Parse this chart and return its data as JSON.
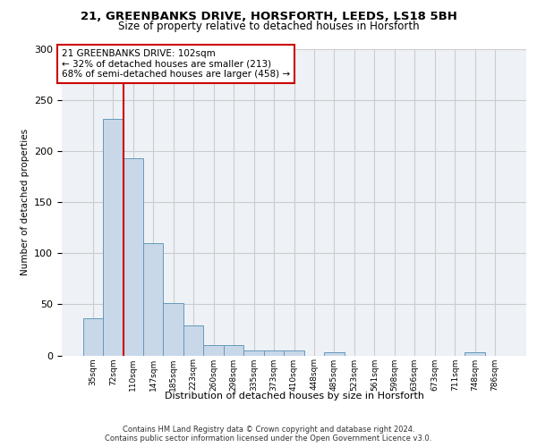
{
  "title_line1": "21, GREENBANKS DRIVE, HORSFORTH, LEEDS, LS18 5BH",
  "title_line2": "Size of property relative to detached houses in Horsforth",
  "xlabel": "Distribution of detached houses by size in Horsforth",
  "ylabel": "Number of detached properties",
  "bar_labels": [
    "35sqm",
    "72sqm",
    "110sqm",
    "147sqm",
    "185sqm",
    "223sqm",
    "260sqm",
    "298sqm",
    "335sqm",
    "373sqm",
    "410sqm",
    "448sqm",
    "485sqm",
    "523sqm",
    "561sqm",
    "598sqm",
    "636sqm",
    "673sqm",
    "711sqm",
    "748sqm",
    "786sqm"
  ],
  "bar_values": [
    36,
    232,
    193,
    110,
    51,
    29,
    10,
    10,
    5,
    5,
    5,
    0,
    3,
    0,
    0,
    0,
    0,
    0,
    0,
    3,
    0
  ],
  "bar_color": "#c8d8e8",
  "bar_edge_color": "#6699bb",
  "grid_color": "#cccccc",
  "vline_color": "#cc0000",
  "annotation_text": "21 GREENBANKS DRIVE: 102sqm\n← 32% of detached houses are smaller (213)\n68% of semi-detached houses are larger (458) →",
  "annotation_box_color": "#ffffff",
  "annotation_box_edge": "#cc0000",
  "ylim": [
    0,
    300
  ],
  "yticks": [
    0,
    50,
    100,
    150,
    200,
    250,
    300
  ],
  "footnote": "Contains HM Land Registry data © Crown copyright and database right 2024.\nContains public sector information licensed under the Open Government Licence v3.0.",
  "bg_color": "#eef2f7"
}
